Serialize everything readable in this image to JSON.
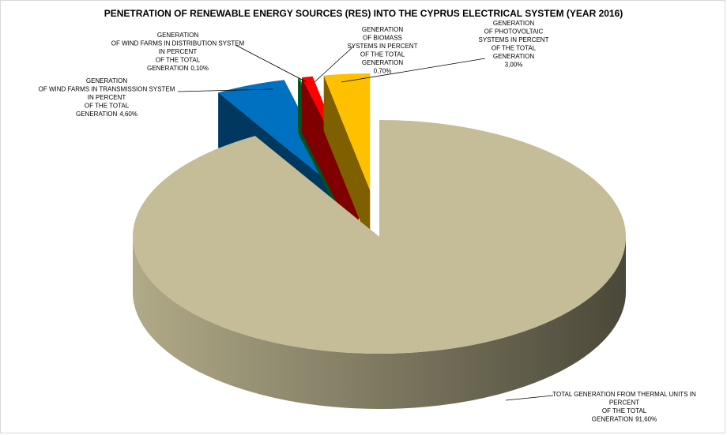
{
  "chart_data": {
    "type": "pie3d",
    "title": "PENETRATION OF RENEWABLE ENERGY SOURCES (RES) INTO THE CYPRUS ELECTRICAL SYSTEM (YEAR 2016)",
    "categories": [
      [
        "TOTAL GENERATION FROM THERMAL UNITS  IN",
        "PERCENT",
        "OF THE TOTAL",
        "GENERATION"
      ],
      [
        "GENERATION",
        "OF WIND FARMS IN TRANSMISSION SYSTEM",
        "IN PERCENT",
        "OF THE TOTAL",
        "GENERATION"
      ],
      [
        "GENERATION",
        "OF WIND FARMS IN DISTRIBUTION SYSTEM",
        "IN PERCENT",
        "OF THE TOTAL",
        "GENERATION"
      ],
      [
        "GENERATION",
        "OF BIOMASS",
        "SYSTEMS  IN PERCENT",
        "OF THE TOTAL",
        "GENERATION"
      ],
      [
        "GENERATION",
        "OF PHOTOVOLTAIC",
        "SYSTEMS  IN PERCENT",
        "OF THE TOTAL",
        "GENERATION"
      ]
    ],
    "values": [
      91.6,
      4.6,
      0.1,
      0.7,
      3
    ],
    "value_labels": [
      "91,60%",
      "4,60%",
      "0,10%",
      "0,70%",
      "3,00%"
    ],
    "colors": [
      "#c4bd97",
      "#0070c0",
      "#00a040",
      "#ff0000",
      "#ffc000"
    ],
    "exploded": [
      false,
      true,
      true,
      true,
      true
    ]
  }
}
